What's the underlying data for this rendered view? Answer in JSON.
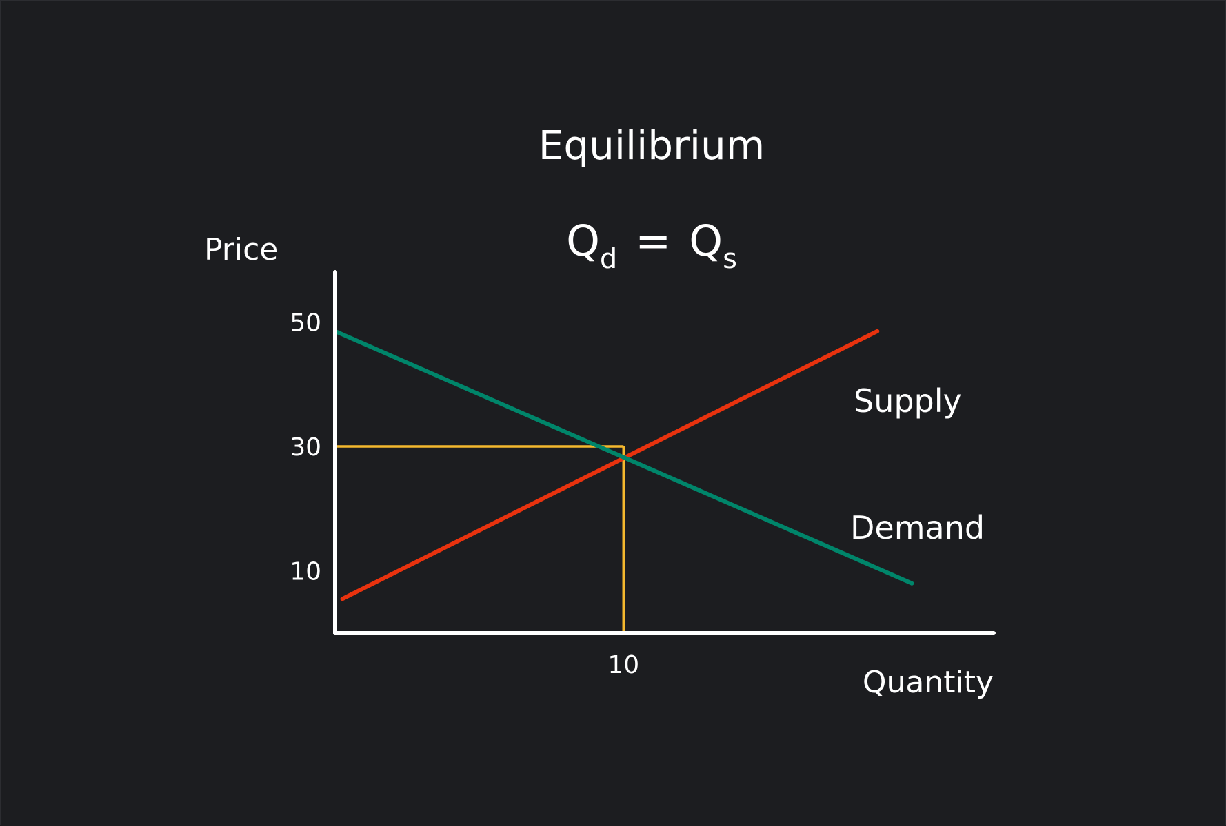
{
  "chart_data": {
    "type": "line",
    "title": "Equilibrium",
    "subtitle": {
      "q1": "Q",
      "q1_sub": "d",
      "eq": "=",
      "q2": "Q",
      "q2_sub": "s"
    },
    "xlabel": "Quantity",
    "ylabel": "Price",
    "xlim": [
      0,
      23
    ],
    "ylim": [
      0,
      58
    ],
    "x_ticks": [
      10
    ],
    "y_ticks": [
      10,
      30,
      50
    ],
    "grid": false,
    "legend": "none",
    "series": [
      {
        "name": "Supply",
        "color": "#e8320e",
        "x": [
          0.25,
          18.8
        ],
        "y": [
          5.5,
          48.5
        ]
      },
      {
        "name": "Demand",
        "color": "#00856a",
        "x": [
          0,
          20
        ],
        "y": [
          48.5,
          8.0
        ]
      }
    ],
    "equilibrium": {
      "x": 10,
      "y": 30,
      "color": "#f4b82e"
    },
    "axis_color": "#ffffff"
  }
}
